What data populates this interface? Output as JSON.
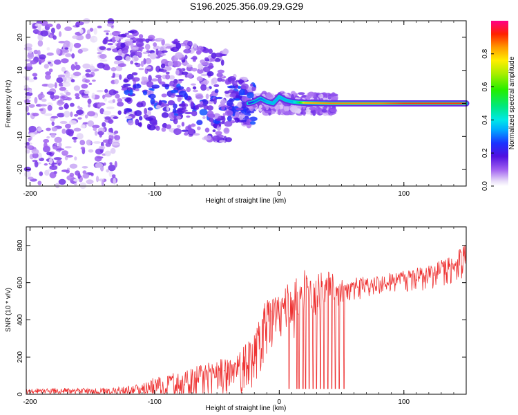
{
  "chart_data": [
    {
      "type": "heatmap",
      "title": "S196.2025.356.09.29.G29",
      "xlabel": "Height of straight line (km)",
      "ylabel": "Frequency (Hz)",
      "xlim": [
        -203,
        150
      ],
      "ylim": [
        -25,
        25
      ],
      "xticks": [
        -200,
        -100,
        0,
        100
      ],
      "yticks": [
        -20,
        -10,
        0,
        10,
        20
      ],
      "xtick_labels": [
        "-200",
        "-100",
        "0",
        "100"
      ],
      "ytick_labels": [
        "-20",
        "-10",
        "0",
        "10",
        "20"
      ],
      "colorbar": {
        "label": "Normalized spectral amplitude",
        "range": [
          0,
          1
        ],
        "ticks": [
          0.0,
          0.2,
          0.4,
          0.6,
          0.8
        ],
        "tick_labels": [
          "0.0",
          "0.2",
          "0.4",
          "0.6",
          "0.8"
        ]
      },
      "ridge": {
        "x": [
          -25,
          -20,
          -15,
          -10,
          -5,
          0,
          5,
          10,
          15,
          20,
          40,
          60,
          80,
          100,
          120,
          150
        ],
        "freq": [
          0,
          0.5,
          1.5,
          0.5,
          0,
          2,
          1,
          0.5,
          0.3,
          0.2,
          0,
          0,
          0,
          0,
          0,
          0
        ],
        "amplitude": [
          0.2,
          0.3,
          0.3,
          0.35,
          0.35,
          0.35,
          0.35,
          0.35,
          0.5,
          0.8,
          0.85,
          0.85,
          0.85,
          0.9,
          0.9,
          0.9
        ]
      }
    },
    {
      "type": "line",
      "xlabel": "Height of straight line (km)",
      "ylabel": "SNR (10 * v/v)",
      "xlim": [
        -203,
        150
      ],
      "ylim": [
        0,
        900
      ],
      "xticks": [
        -200,
        -100,
        0,
        100
      ],
      "yticks": [
        0,
        200,
        400,
        600,
        800
      ],
      "xtick_labels": [
        "-200",
        "-100",
        "0",
        "100"
      ],
      "ytick_labels": [
        "0",
        "200",
        "400",
        "600",
        "800"
      ],
      "series": [
        {
          "name": "SNR",
          "color": "#ee3333",
          "x": [
            -203,
            -180,
            -150,
            -130,
            -110,
            -100,
            -80,
            -60,
            -40,
            -30,
            -20,
            -15,
            -10,
            -5,
            0,
            10,
            20,
            30,
            40,
            50,
            60,
            70,
            80,
            90,
            100,
            120,
            140,
            150
          ],
          "mean": [
            20,
            22,
            20,
            22,
            35,
            55,
            80,
            110,
            140,
            170,
            230,
            350,
            420,
            440,
            470,
            520,
            560,
            590,
            600,
            580,
            590,
            600,
            610,
            620,
            630,
            660,
            700,
            760
          ],
          "spread": [
            18,
            20,
            20,
            25,
            40,
            60,
            80,
            90,
            110,
            130,
            150,
            160,
            160,
            140,
            120,
            160,
            180,
            120,
            100,
            70,
            60,
            60,
            60,
            60,
            60,
            70,
            80,
            90
          ],
          "dropouts_x": [
            8,
            14,
            16,
            19,
            21,
            24,
            27,
            30,
            33,
            36,
            39,
            42,
            45,
            48,
            52
          ]
        }
      ]
    }
  ],
  "colors": {
    "line": "#ee3333",
    "axis": "#000000",
    "background": "#ffffff"
  }
}
